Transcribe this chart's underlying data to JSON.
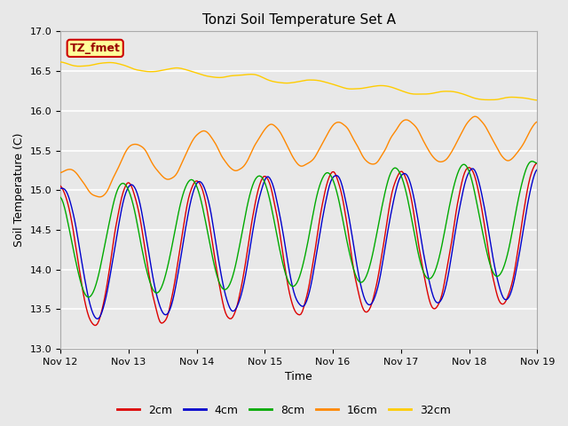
{
  "title": "Tonzi Soil Temperature Set A",
  "xlabel": "Time",
  "ylabel": "Soil Temperature (C)",
  "ylim": [
    13.0,
    17.0
  ],
  "yticks": [
    13.0,
    13.5,
    14.0,
    14.5,
    15.0,
    15.5,
    16.0,
    16.5,
    17.0
  ],
  "xtick_labels": [
    "Nov 12",
    "Nov 13",
    "Nov 14",
    "Nov 15",
    "Nov 16",
    "Nov 17",
    "Nov 18",
    "Nov 19"
  ],
  "legend_label": "TZ_fmet",
  "legend_box_color": "#ffff99",
  "legend_box_edge": "#cc0000",
  "series_colors": {
    "2cm": "#dd0000",
    "4cm": "#0000cc",
    "8cm": "#00aa00",
    "16cm": "#ff8800",
    "32cm": "#ffcc00"
  },
  "fig_facecolor": "#e8e8e8",
  "plot_facecolor": "#e8e8e8",
  "grid_color": "#ffffff"
}
